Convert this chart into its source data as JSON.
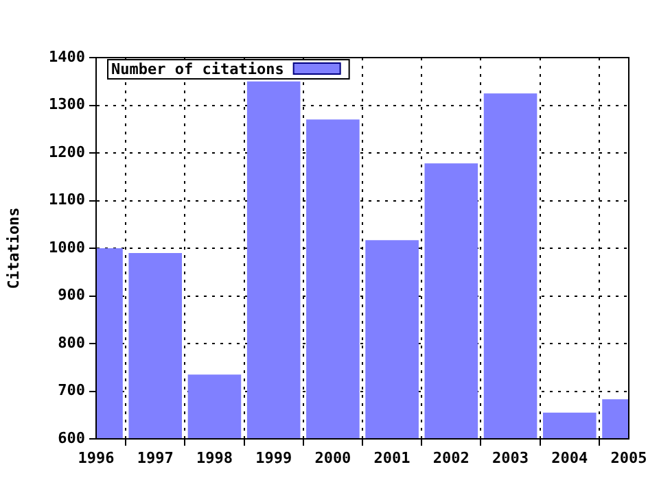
{
  "chart_data": {
    "type": "bar",
    "ylabel": "Citations",
    "x": [
      1996,
      1997,
      1998,
      1999,
      2000,
      2001,
      2002,
      2003,
      2004,
      2005
    ],
    "series": [
      {
        "name": "Number of citations",
        "color": "#8080ff",
        "values": [
          1000,
          990,
          735,
          1350,
          1270,
          1017,
          1178,
          1325,
          655,
          683
        ]
      }
    ],
    "xlim": [
      1996,
      2005
    ],
    "xticks": [
      1996,
      1997,
      1998,
      1999,
      2000,
      2001,
      2002,
      2003,
      2004,
      2005
    ],
    "ylim": [
      600,
      1400
    ],
    "yticks": [
      600,
      700,
      800,
      900,
      1000,
      1100,
      1200,
      1300,
      1400
    ],
    "grid": true,
    "legend": "top left"
  }
}
